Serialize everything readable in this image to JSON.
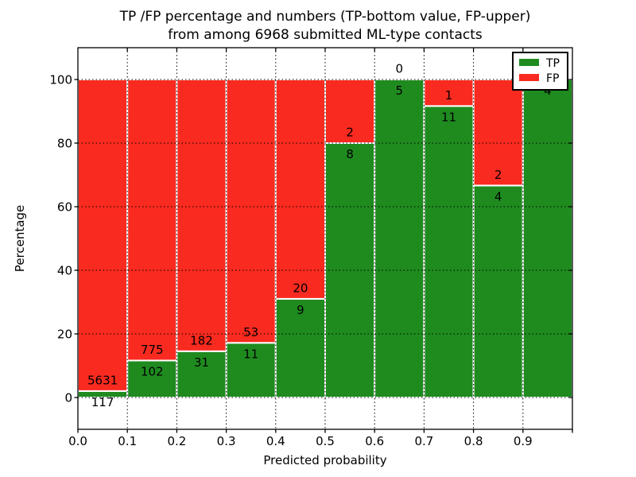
{
  "title": {
    "line1": "TP /FP percentage and numbers (TP-bottom value, FP-upper)",
    "line2": "from among 6968 submitted ML-type contacts"
  },
  "axes": {
    "xlabel": "Predicted probability",
    "ylabel": "Percentage"
  },
  "legend": {
    "position": "upper right",
    "entries": [
      {
        "label": "TP",
        "color": "#1f8b1f"
      },
      {
        "label": "FP",
        "color": "#f92a1f"
      }
    ]
  },
  "colors": {
    "tp": "#1f8b1f",
    "fp": "#f92a1f",
    "background": "#ffffff",
    "grid": "#000000",
    "bar_edge": "#ffffff",
    "spine": "#000000",
    "text": "#000000"
  },
  "chart_data": {
    "type": "bar",
    "stacked": true,
    "units": "percent_of_bin_total",
    "title": "TP /FP percentage and numbers (TP-bottom value, FP-upper) from among 6968 submitted ML-type contacts",
    "xlabel": "Predicted probability",
    "ylabel": "Percentage",
    "total_submitted_contacts": 6968,
    "bin_edges": [
      0.0,
      0.1,
      0.2,
      0.3,
      0.4,
      0.5,
      0.6,
      0.7,
      0.8,
      0.9,
      1.0
    ],
    "series": [
      {
        "name": "TP",
        "color": "#1f8b1f",
        "counts": [
          117,
          102,
          31,
          11,
          9,
          8,
          5,
          11,
          4,
          4
        ]
      },
      {
        "name": "FP",
        "color": "#f92a1f",
        "counts": [
          5631,
          775,
          182,
          53,
          20,
          2,
          0,
          1,
          2,
          0
        ]
      }
    ],
    "tp_percent": [
      2.0,
      11.6,
      14.6,
      17.2,
      31.0,
      80.0,
      100.0,
      91.7,
      66.7,
      100.0
    ],
    "x_tick_labels": [
      "0.0",
      "0.1",
      "0.2",
      "0.3",
      "0.4",
      "0.5",
      "0.6",
      "0.7",
      "0.8",
      "0.9"
    ],
    "y_tick_values": [
      0,
      20,
      40,
      60,
      80,
      100
    ],
    "xlim": [
      0.0,
      1.0
    ],
    "ylim": [
      -10,
      110
    ],
    "grid": "dotted",
    "legend_position": "upper right"
  }
}
